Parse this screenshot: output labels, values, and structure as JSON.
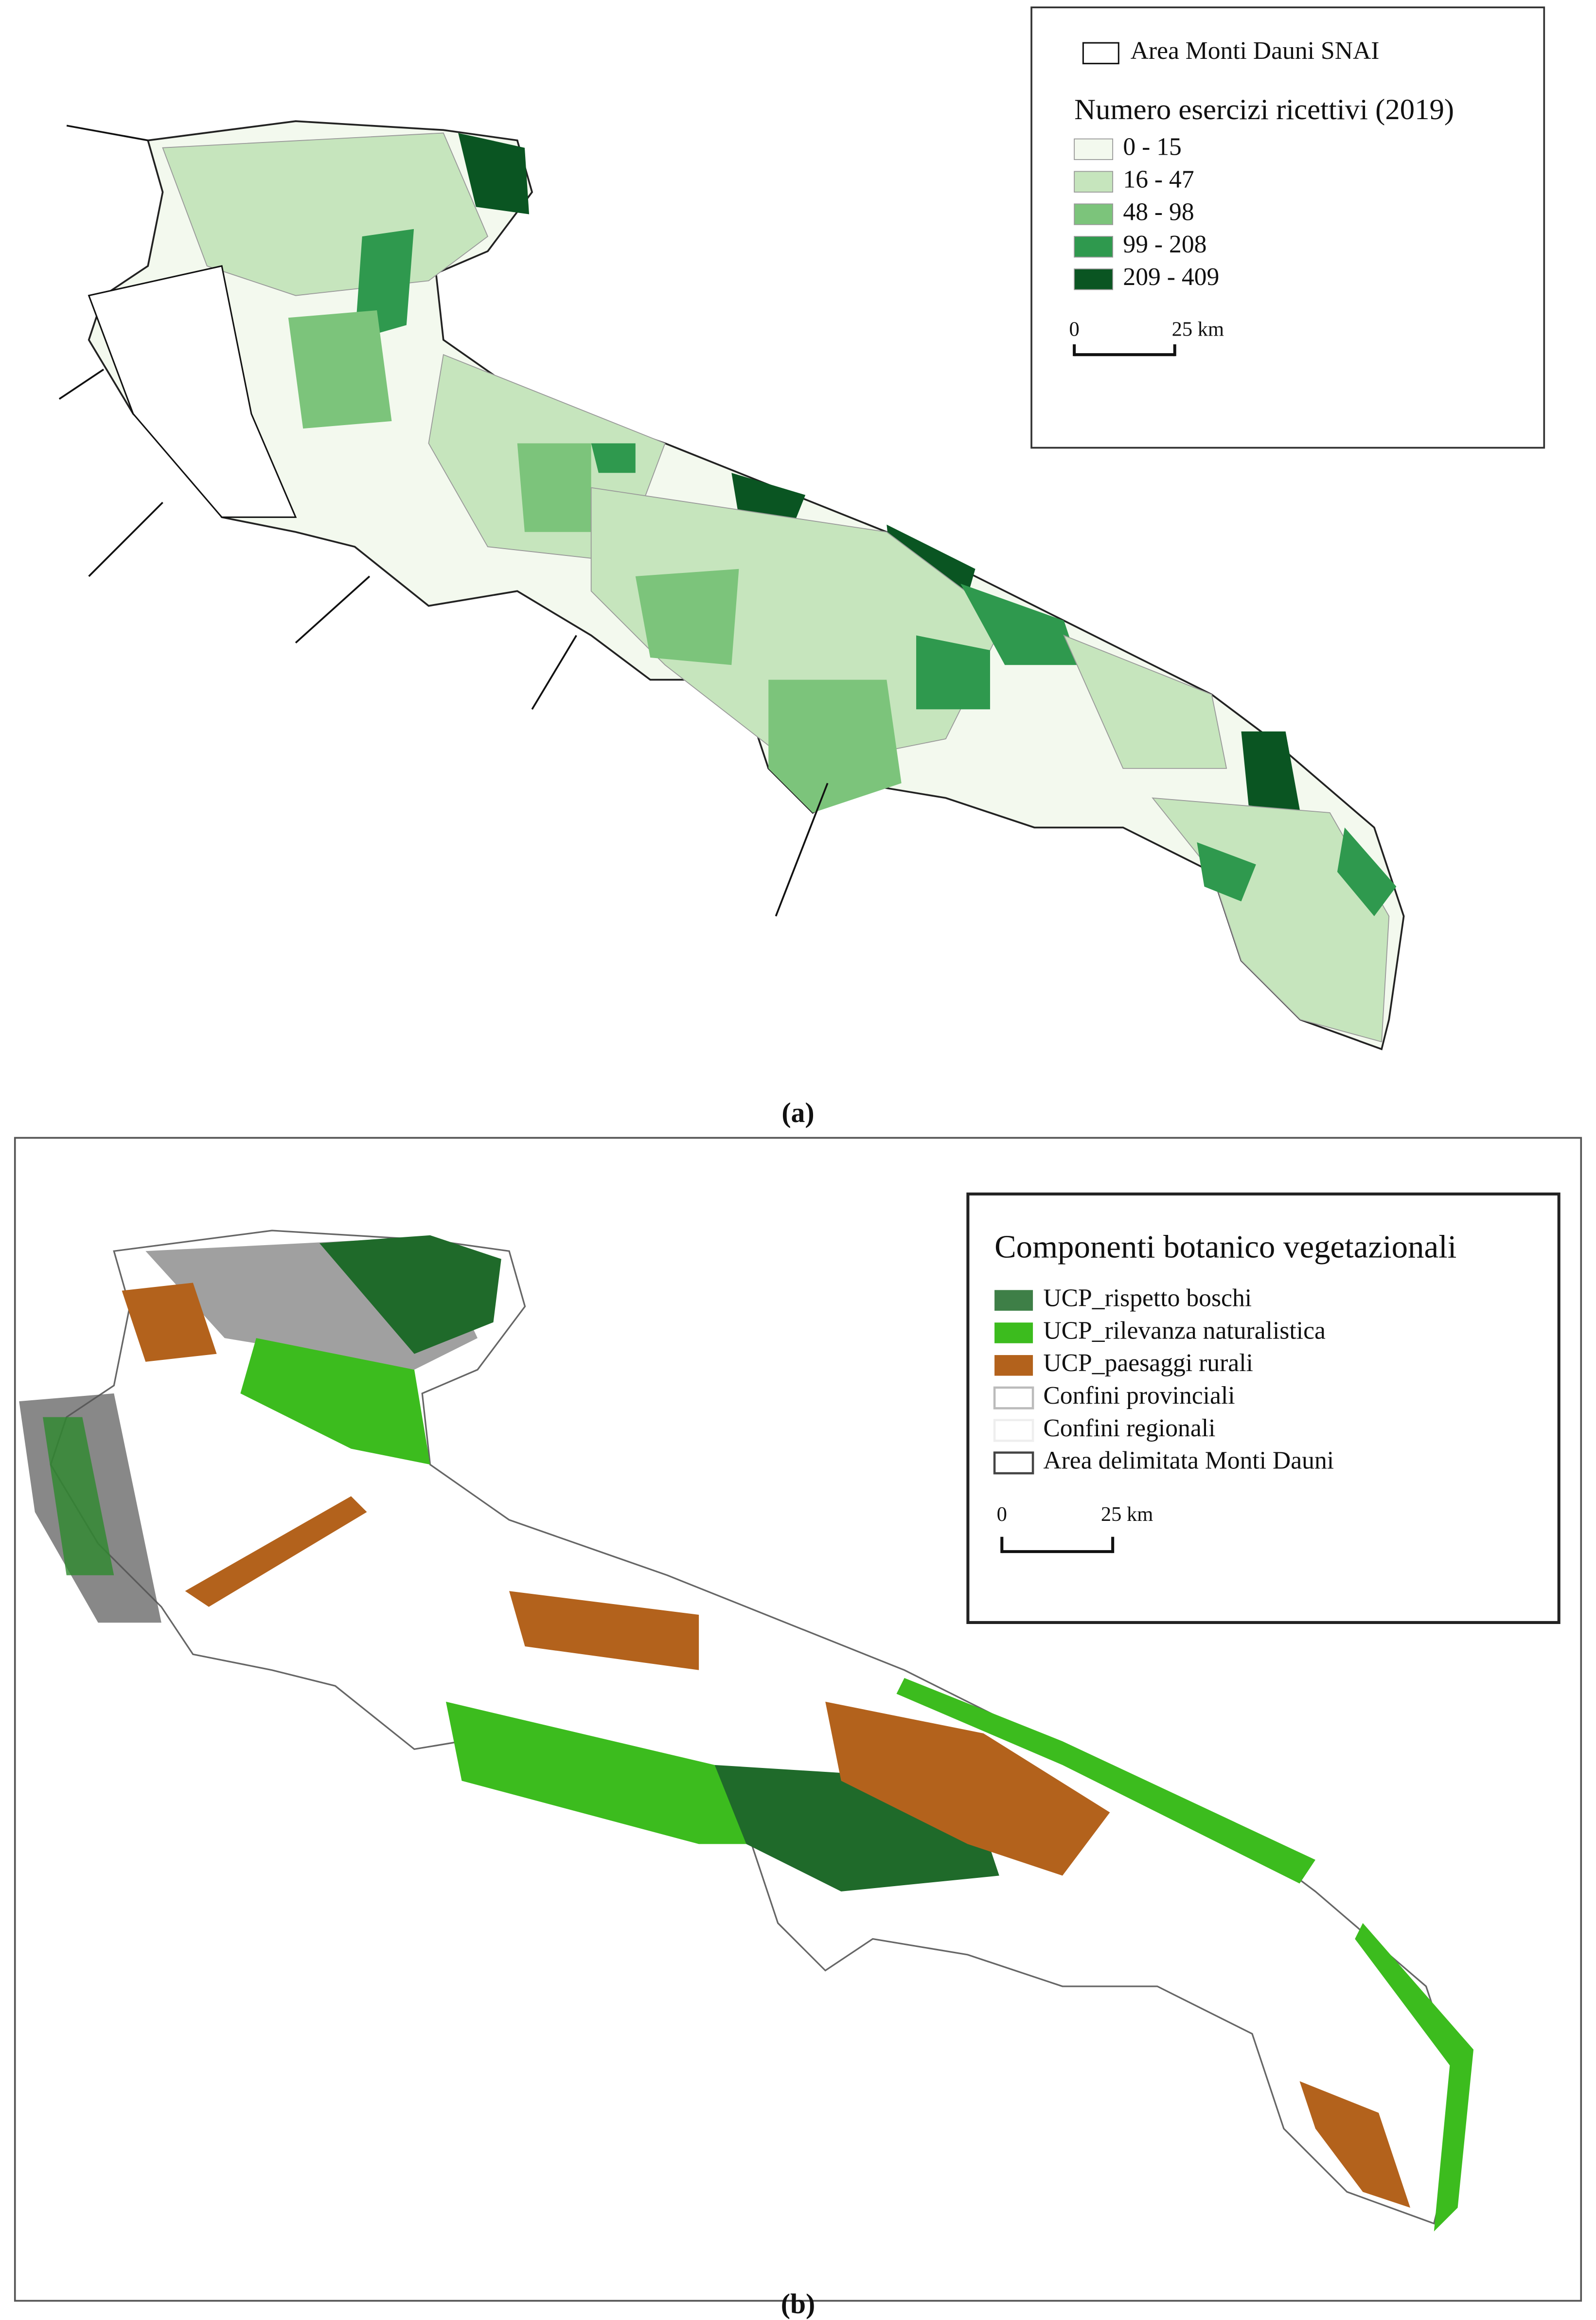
{
  "panel_a": {
    "caption": "(a)",
    "boundary_label": "Area Monti Dauni SNAI",
    "legend_title": "Numero esercizi ricettivi (2019)",
    "classes": [
      {
        "label": "0 - 15",
        "color": "#f3f9ee"
      },
      {
        "label": "16 - 47",
        "color": "#c6e5bd"
      },
      {
        "label": "48 - 98",
        "color": "#7cc47b"
      },
      {
        "label": "99 - 208",
        "color": "#2f994e"
      },
      {
        "label": "209 - 409",
        "color": "#0a5522"
      }
    ],
    "scale": {
      "start": "0",
      "end": "25 km"
    }
  },
  "panel_b": {
    "caption": "(b)",
    "legend_title": "Componenti botanico vegetazionali",
    "entries": [
      {
        "label": "UCP_rispetto boschi",
        "color": "#3e7f47"
      },
      {
        "label": "UCP_rilevanza naturalistica",
        "color": "#3cbc1e"
      },
      {
        "label": "UCP_paesaggi rurali",
        "color": "#b3621c"
      },
      {
        "label": "Confini provinciali",
        "color": "#bbbbbb"
      },
      {
        "label": "Confini regionali",
        "color": "#eeeeee"
      },
      {
        "label": "Area delimitata Monti Dauni",
        "color": "#444444"
      }
    ],
    "scale": {
      "start": "0",
      "end": "25 km"
    }
  }
}
